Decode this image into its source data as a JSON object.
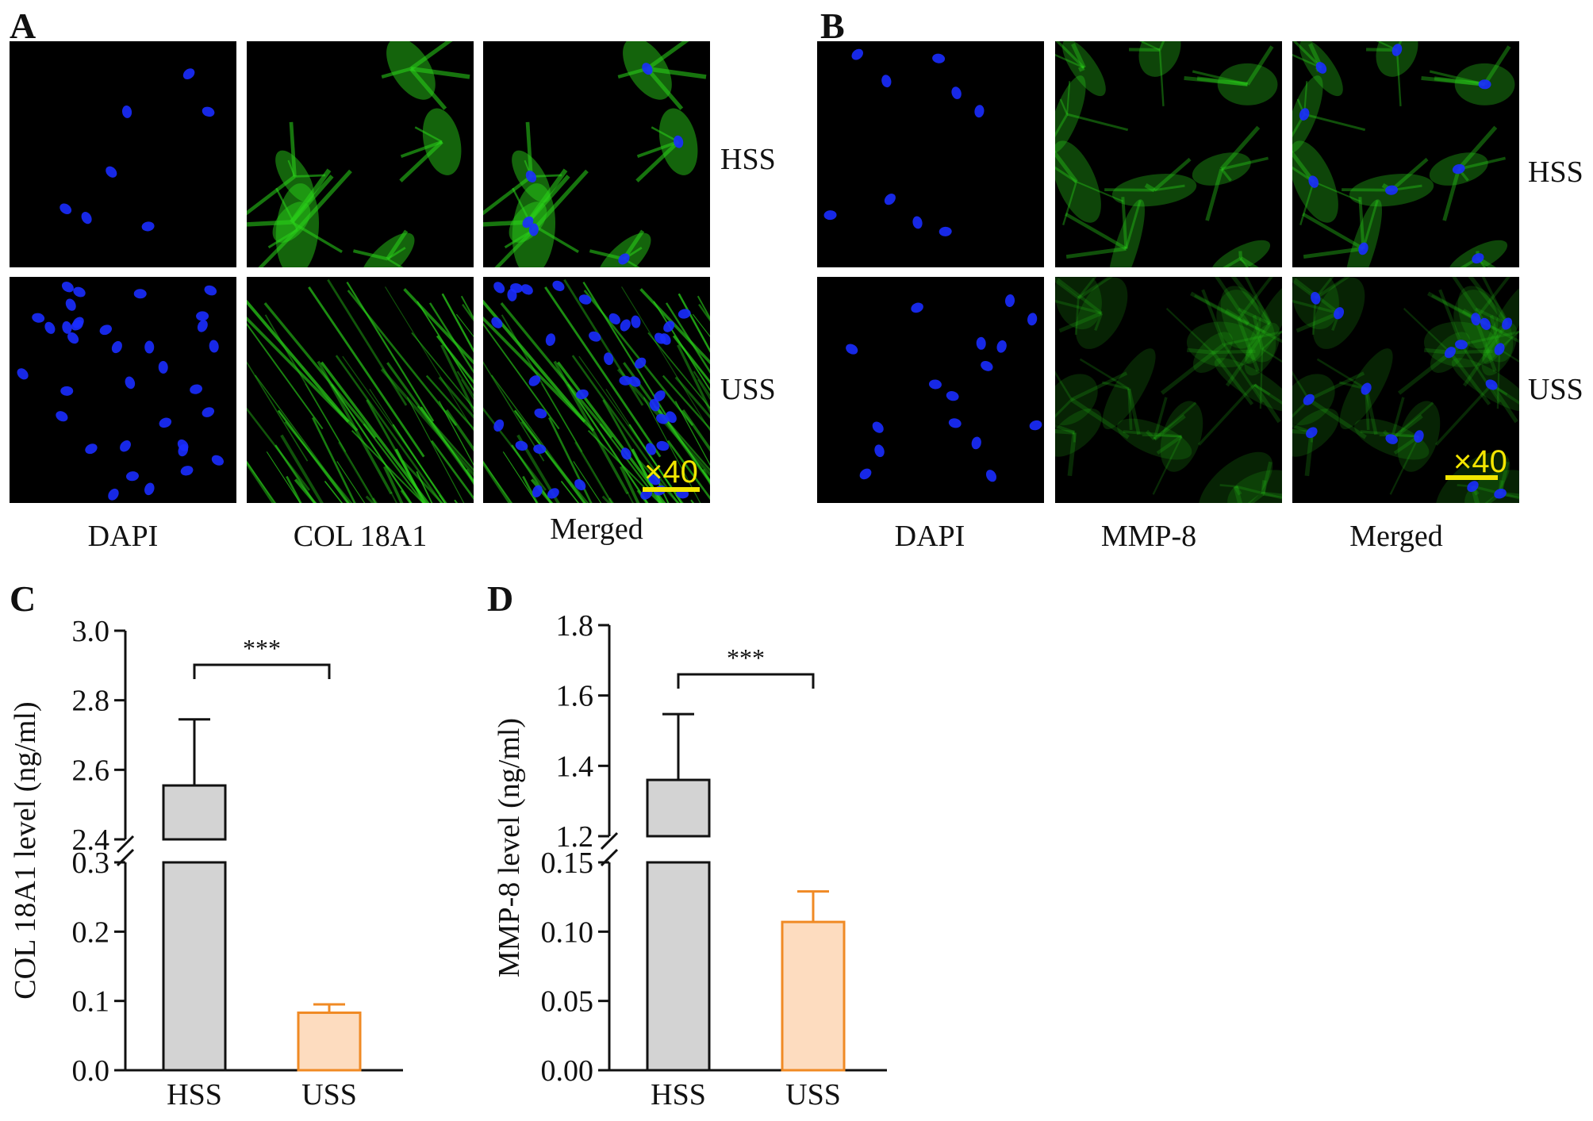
{
  "panels": {
    "A": {
      "letter": "A",
      "row_labels": [
        "HSS",
        "USS"
      ],
      "column_labels": [
        "DAPI",
        "COL 18A1",
        "Merged"
      ],
      "scale_text": "×40"
    },
    "B": {
      "letter": "B",
      "row_labels": [
        "HSS",
        "USS"
      ],
      "column_labels": [
        "DAPI",
        "MMP-8",
        "Merged"
      ],
      "scale_text": "×40"
    },
    "C": {
      "letter": "C"
    },
    "D": {
      "letter": "D"
    }
  },
  "colors": {
    "dapi": "#1a2cff",
    "stain": "#2ad11a",
    "scale": "#f2e600",
    "hss_fill": "#d3d3d3",
    "uss_fill": "#fddcbf",
    "uss_stroke": "#f08a24"
  },
  "chart_data": [
    {
      "type": "bar",
      "panel": "C",
      "ylabel": "COL 18A1 level (ng/ml)",
      "categories": [
        "HSS",
        "USS"
      ],
      "values": [
        2.555,
        0.083
      ],
      "errors": [
        0.19,
        0.012
      ],
      "significance": "***",
      "axis_break": true,
      "lower_ylim": [
        0.0,
        0.3
      ],
      "upper_ylim": [
        2.4,
        3.0
      ],
      "lower_ticks": [
        "0.0",
        "0.1",
        "0.2",
        "0.3"
      ],
      "upper_ticks": [
        "2.4",
        "2.6",
        "2.8",
        "3.0"
      ],
      "lower_tick_values": [
        0.0,
        0.1,
        0.2,
        0.3
      ],
      "upper_tick_values": [
        2.4,
        2.6,
        2.8,
        3.0
      ]
    },
    {
      "type": "bar",
      "panel": "D",
      "ylabel": "MMP-8 level (ng/ml)",
      "categories": [
        "HSS",
        "USS"
      ],
      "values": [
        1.36,
        0.107
      ],
      "errors": [
        0.187,
        0.022
      ],
      "significance": "***",
      "axis_break": true,
      "lower_ylim": [
        0.0,
        0.15
      ],
      "upper_ylim": [
        1.2,
        1.8
      ],
      "lower_ticks": [
        "0.00",
        "0.05",
        "0.10",
        "0.15"
      ],
      "upper_ticks": [
        "1.2",
        "1.4",
        "1.6",
        "1.8"
      ],
      "lower_tick_values": [
        0.0,
        0.05,
        0.1,
        0.15
      ],
      "upper_tick_values": [
        1.2,
        1.4,
        1.6,
        1.8
      ]
    }
  ]
}
